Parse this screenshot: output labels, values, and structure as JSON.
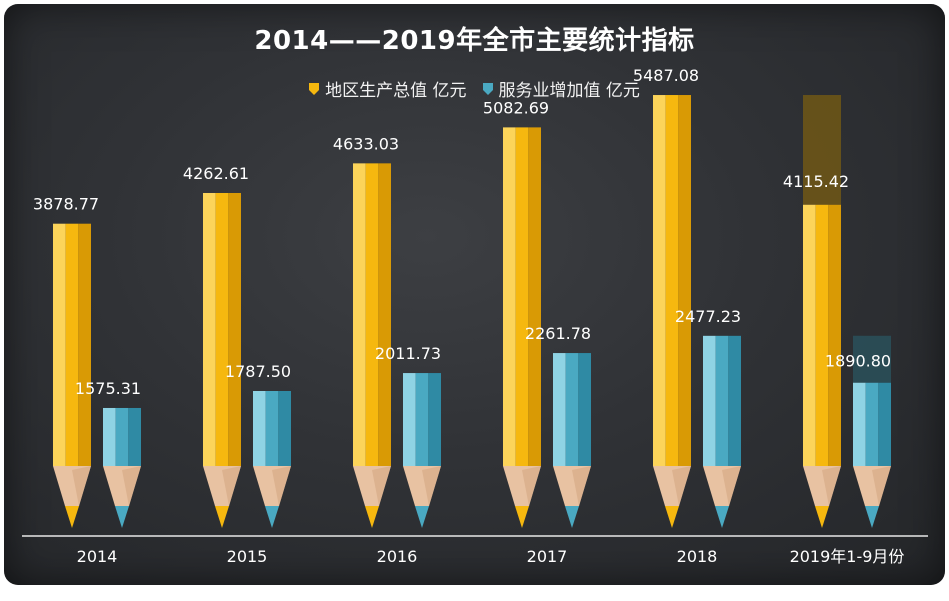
{
  "chart_data": {
    "type": "bar",
    "title": "2014——2019年全市主要统计指标",
    "categories": [
      "2014",
      "2015",
      "2016",
      "2017",
      "2018",
      "2019年1-9月份"
    ],
    "series": [
      {
        "name": "地区生产总值 亿元",
        "values": [
          3878.77,
          4262.61,
          4633.03,
          5082.69,
          5487.08,
          4115.42
        ]
      },
      {
        "name": "服务业增加值 亿元",
        "values": [
          1575.31,
          1787.5,
          2011.73,
          2261.78,
          2477.23,
          1890.8
        ]
      }
    ],
    "value_labels": [
      [
        "3878.77",
        "4262.61",
        "4633.03",
        "5082.69",
        "5487.08",
        "4115.42"
      ],
      [
        "1575.31",
        "1787.50",
        "2011.73",
        "2261.78",
        "2477.23",
        "1890.80"
      ]
    ],
    "partial_year_projection": {
      "series_0": 5487.08,
      "series_1": 2477.23
    },
    "ylim": [
      0,
      6000
    ],
    "legend_position": "top-center",
    "grid": false,
    "colors": {
      "series_0": "#f6b80f",
      "series_0_light": "#fcd45a",
      "series_0_dark": "#d99a05",
      "series_1": "#4aa9c2",
      "series_1_light": "#8fd3e4",
      "series_1_dark": "#2f8aa4",
      "wood": "#e8c2a2",
      "background": "#2f3034",
      "text": "#ffffff"
    }
  }
}
